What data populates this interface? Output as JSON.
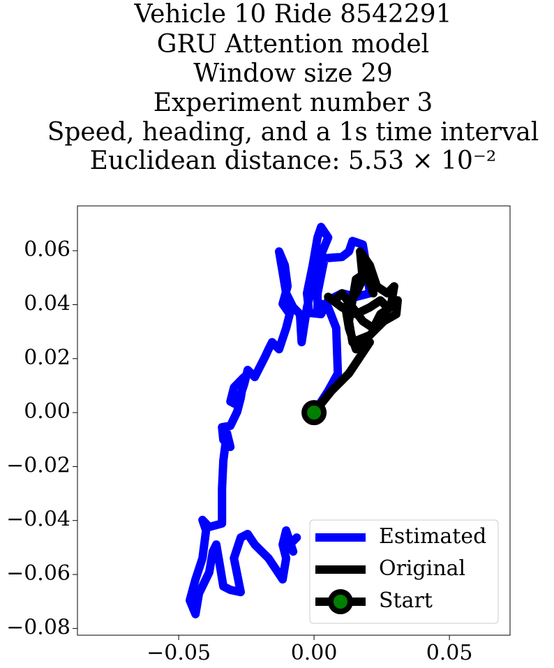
{
  "chart_data": {
    "type": "line",
    "title": [
      "Vehicle 10 Ride 8542291",
      "GRU Attention model",
      "Window size 29",
      "Experiment number 3",
      "Speed, heading, and a 1s time interval",
      "Euclidean distance: 5.53 × 10⁻²"
    ],
    "xlim": [
      -0.0874,
      0.0724
    ],
    "ylim": [
      -0.0825,
      0.0766
    ],
    "xticks": [
      {
        "value": -0.05,
        "label": "−0.05"
      },
      {
        "value": 0,
        "label": "0.00"
      },
      {
        "value": 0.05,
        "label": "0.05"
      }
    ],
    "yticks": [
      {
        "value": -0.08,
        "label": "−0.08"
      },
      {
        "value": -0.06,
        "label": "−0.06"
      },
      {
        "value": -0.04,
        "label": "−0.04"
      },
      {
        "value": -0.02,
        "label": "−0.02"
      },
      {
        "value": 0,
        "label": "0.00"
      },
      {
        "value": 0.02,
        "label": "0.02"
      },
      {
        "value": 0.04,
        "label": "0.04"
      },
      {
        "value": 0.06,
        "label": "0.06"
      }
    ],
    "grid": false,
    "legend": "lower right",
    "series": [
      {
        "name": "Estimated",
        "color": "#0000ff",
        "x": [
          0,
          0.0052,
          0.0088,
          0.0082,
          0.0052,
          0.0026,
          0.0013,
          0.0013,
          0.0031,
          0.0039,
          0.0103,
          0.0129,
          0.0142,
          0.018,
          0.0193,
          0.0206,
          0.0155,
          0.0103,
          0.0052,
          0.0026,
          -0.0018,
          -0.0026,
          -0.0005,
          0.0013,
          0.0026,
          0.0052,
          0.0031,
          0,
          -0.0026,
          -0.0046,
          -0.0052,
          -0.0077,
          -0.0103,
          -0.0116,
          -0.0129,
          -0.0108,
          -0.0098,
          -0.0116,
          -0.009,
          -0.0103,
          -0.0129,
          -0.0155,
          -0.0168,
          -0.018,
          -0.0219,
          -0.0245,
          -0.0258,
          -0.0284,
          -0.0309,
          -0.0296,
          -0.0258,
          -0.0271,
          -0.0284,
          -0.0309,
          -0.034,
          -0.0335,
          -0.0309,
          -0.0322,
          -0.0335,
          -0.034,
          -0.034,
          -0.0387,
          -0.0412,
          -0.0399,
          -0.0412,
          -0.0438,
          -0.0459,
          -0.0438,
          -0.0425,
          -0.0387,
          -0.0374,
          -0.0361,
          -0.0348,
          -0.0335,
          -0.0309,
          -0.0271,
          -0.0296,
          -0.0271,
          -0.0245,
          -0.0219,
          -0.0168,
          -0.0116,
          -0.0103,
          -0.0116,
          -0.0103,
          -0.0077,
          -0.009,
          -0.0064
        ],
        "y": [
          0,
          0.008,
          0.0145,
          0.0313,
          0.039,
          0.0403,
          0.0372,
          0.0442,
          0.0533,
          0.0572,
          0.0577,
          0.0597,
          0.0636,
          0.0623,
          0.0546,
          0.0442,
          0.0429,
          0.0442,
          0.0416,
          0.0365,
          0.037,
          0.0442,
          0.0546,
          0.0649,
          0.0688,
          0.0649,
          0.0597,
          0.0494,
          0.039,
          0.0261,
          0.0365,
          0.039,
          0.0442,
          0.052,
          0.0597,
          0.0546,
          0.0468,
          0.0403,
          0.0365,
          0.0313,
          0.0235,
          0.0261,
          0.0235,
          0.0209,
          0.0132,
          0.0158,
          0.0106,
          0.0028,
          0.0041,
          0.0093,
          0.0132,
          0.0054,
          0.0003,
          -0.0049,
          -0.0054,
          -0.0101,
          -0.0127,
          -0.0075,
          -0.0178,
          -0.0282,
          -0.0411,
          -0.0424,
          -0.0398,
          -0.0437,
          -0.054,
          -0.0618,
          -0.0696,
          -0.0747,
          -0.067,
          -0.0592,
          -0.0515,
          -0.0489,
          -0.0566,
          -0.0644,
          -0.0657,
          -0.0665,
          -0.054,
          -0.0463,
          -0.045,
          -0.0489,
          -0.054,
          -0.0618,
          -0.054,
          -0.0489,
          -0.0437,
          -0.0515,
          -0.0489,
          -0.0463
        ]
      },
      {
        "name": "Original",
        "color": "#000000",
        "x": [
          0,
          0.0064,
          0.0129,
          0.0206,
          0.0155,
          0.0129,
          0.0116,
          0.0155,
          0.018,
          0.017,
          0.0206,
          0.0232,
          0.0271,
          0.0296,
          0.0283,
          0.0245,
          0.0219,
          0.018,
          0.0142,
          0.0103,
          0.0077,
          0.0052,
          0.0103,
          0.0155,
          0.0206,
          0.0245,
          0.0271,
          0.0309,
          0.0304,
          0.0258,
          0.0206,
          0.0142,
          0.0129,
          0.0155,
          0.0193,
          0.0219
        ],
        "y": [
          0,
          0.008,
          0.0145,
          0.0261,
          0.0235,
          0.0313,
          0.039,
          0.0442,
          0.0494,
          0.0597,
          0.0546,
          0.0468,
          0.0442,
          0.0468,
          0.039,
          0.0365,
          0.0313,
          0.0339,
          0.039,
          0.0442,
          0.0416,
          0.0429,
          0.039,
          0.0365,
          0.039,
          0.0416,
          0.039,
          0.0416,
          0.0365,
          0.0339,
          0.0287,
          0.0261,
          0.0339,
          0.0494,
          0.052,
          0.0442
        ]
      },
      {
        "name": "Start",
        "color": "#000000",
        "marker_color": "#008000",
        "x": [
          0
        ],
        "y": [
          0
        ]
      }
    ]
  }
}
